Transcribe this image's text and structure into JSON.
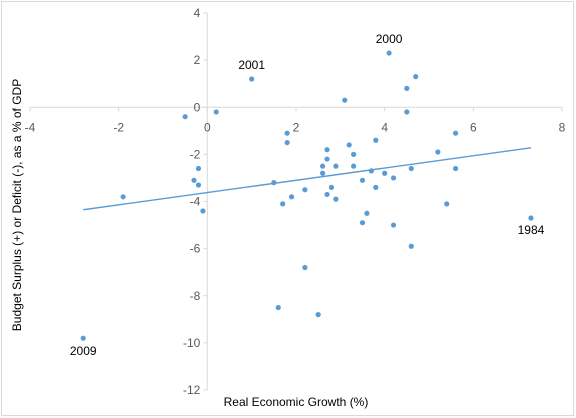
{
  "chart_data": {
    "type": "scatter",
    "xlabel": "Real Economic Growth (%)",
    "ylabel": "Budget Surplus (+) or Deficit (-), as a % of GDP",
    "xlim": [
      -4,
      8
    ],
    "ylim": [
      -12,
      4
    ],
    "x_ticks": [
      -4,
      -2,
      0,
      2,
      4,
      6,
      8
    ],
    "y_ticks": [
      4,
      2,
      0,
      -2,
      -4,
      -6,
      -8,
      -10,
      -12
    ],
    "grid": false,
    "legend": "none",
    "colors": {
      "points": "#5b9bd5",
      "trendline": "#5b9bd5",
      "axis": "#d9d9d9"
    },
    "points": [
      {
        "x": -2.8,
        "y": -9.8
      },
      {
        "x": -1.9,
        "y": -3.8
      },
      {
        "x": -0.5,
        "y": -0.4
      },
      {
        "x": -0.3,
        "y": -3.1
      },
      {
        "x": -0.2,
        "y": -2.6
      },
      {
        "x": -0.2,
        "y": -3.3
      },
      {
        "x": -0.1,
        "y": -4.4
      },
      {
        "x": 0.2,
        "y": -0.2
      },
      {
        "x": 1.0,
        "y": 1.2
      },
      {
        "x": 1.5,
        "y": -3.2
      },
      {
        "x": 1.6,
        "y": -8.5
      },
      {
        "x": 1.7,
        "y": -4.1
      },
      {
        "x": 1.8,
        "y": -1.1
      },
      {
        "x": 1.8,
        "y": -1.5
      },
      {
        "x": 1.9,
        "y": -3.8
      },
      {
        "x": 2.2,
        "y": -6.8
      },
      {
        "x": 2.2,
        "y": -3.5
      },
      {
        "x": 2.5,
        "y": -8.8
      },
      {
        "x": 2.6,
        "y": -2.5
      },
      {
        "x": 2.6,
        "y": -2.8
      },
      {
        "x": 2.7,
        "y": -1.8
      },
      {
        "x": 2.7,
        "y": -2.2
      },
      {
        "x": 2.7,
        "y": -3.7
      },
      {
        "x": 2.8,
        "y": -3.4
      },
      {
        "x": 2.9,
        "y": -2.5
      },
      {
        "x": 2.9,
        "y": -3.9
      },
      {
        "x": 3.1,
        "y": 0.3
      },
      {
        "x": 3.2,
        "y": -1.6
      },
      {
        "x": 3.3,
        "y": -2.0
      },
      {
        "x": 3.3,
        "y": -2.5
      },
      {
        "x": 3.5,
        "y": -3.1
      },
      {
        "x": 3.5,
        "y": -4.9
      },
      {
        "x": 3.6,
        "y": -4.5
      },
      {
        "x": 3.7,
        "y": -2.7
      },
      {
        "x": 3.8,
        "y": -1.4
      },
      {
        "x": 3.8,
        "y": -3.4
      },
      {
        "x": 4.0,
        "y": -2.8
      },
      {
        "x": 4.1,
        "y": 2.3
      },
      {
        "x": 4.2,
        "y": -3.0
      },
      {
        "x": 4.2,
        "y": -5.0
      },
      {
        "x": 4.5,
        "y": 0.8
      },
      {
        "x": 4.5,
        "y": -0.2
      },
      {
        "x": 4.6,
        "y": -2.6
      },
      {
        "x": 4.6,
        "y": -5.9
      },
      {
        "x": 4.7,
        "y": 1.3
      },
      {
        "x": 5.2,
        "y": -1.9
      },
      {
        "x": 5.4,
        "y": -4.1
      },
      {
        "x": 5.6,
        "y": -1.1
      },
      {
        "x": 5.6,
        "y": -2.6
      },
      {
        "x": 7.3,
        "y": -4.7
      }
    ],
    "trendline": {
      "x": [
        -2.8,
        7.3
      ],
      "y": [
        -4.35,
        -1.72
      ]
    },
    "annotations": [
      {
        "label": "2001",
        "x": 1.0,
        "y": 1.2
      },
      {
        "label": "2000",
        "x": 4.1,
        "y": 2.3
      },
      {
        "label": "1984",
        "x": 7.3,
        "y": -4.7
      },
      {
        "label": "2009",
        "x": -2.8,
        "y": -9.8
      }
    ]
  }
}
